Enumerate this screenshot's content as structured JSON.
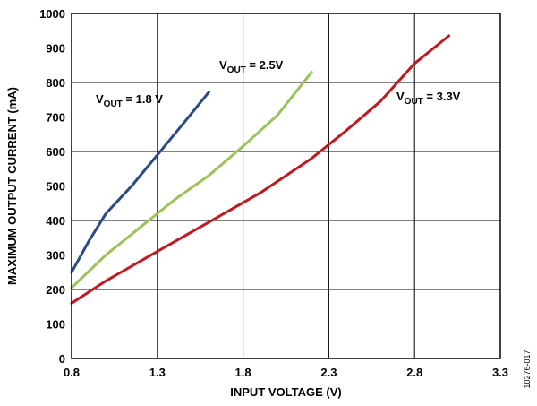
{
  "chart_data": {
    "type": "line",
    "xlabel": "INPUT VOLTAGE (V)",
    "ylabel": "MAXIMUM OUTPUT CURRENT (mA)",
    "xlim": [
      0.8,
      3.3
    ],
    "ylim": [
      0,
      1000
    ],
    "xticks": [
      "0.8",
      "1.3",
      "1.8",
      "2.3",
      "2.8",
      "3.3"
    ],
    "yticks": [
      "0",
      "100",
      "200",
      "300",
      "400",
      "500",
      "600",
      "700",
      "800",
      "900",
      "1000"
    ],
    "grid": true,
    "annotations": [
      {
        "prefix": "V",
        "sub": "OUT",
        "suffix": " = 1.8 V"
      },
      {
        "prefix": "V",
        "sub": "OUT",
        "suffix": " = 2.5V"
      },
      {
        "prefix": "V",
        "sub": "OUT",
        "suffix": " = 3.3V"
      }
    ],
    "figure_id": "10276-017",
    "series": [
      {
        "color": "#2b4b83",
        "points": [
          [
            0.8,
            250
          ],
          [
            0.9,
            340
          ],
          [
            1.0,
            420
          ],
          [
            1.15,
            500
          ],
          [
            1.3,
            590
          ],
          [
            1.45,
            680
          ],
          [
            1.6,
            772
          ]
        ]
      },
      {
        "color": "#9cc25a",
        "points": [
          [
            0.8,
            205
          ],
          [
            1.0,
            300
          ],
          [
            1.2,
            380
          ],
          [
            1.4,
            460
          ],
          [
            1.6,
            530
          ],
          [
            1.8,
            615
          ],
          [
            2.0,
            705
          ],
          [
            2.2,
            830
          ]
        ]
      },
      {
        "color": "#c0191f",
        "points": [
          [
            0.8,
            160
          ],
          [
            1.0,
            225
          ],
          [
            1.3,
            310
          ],
          [
            1.6,
            395
          ],
          [
            1.9,
            480
          ],
          [
            2.2,
            580
          ],
          [
            2.4,
            660
          ],
          [
            2.6,
            745
          ],
          [
            2.8,
            855
          ],
          [
            3.0,
            935
          ]
        ]
      }
    ]
  }
}
